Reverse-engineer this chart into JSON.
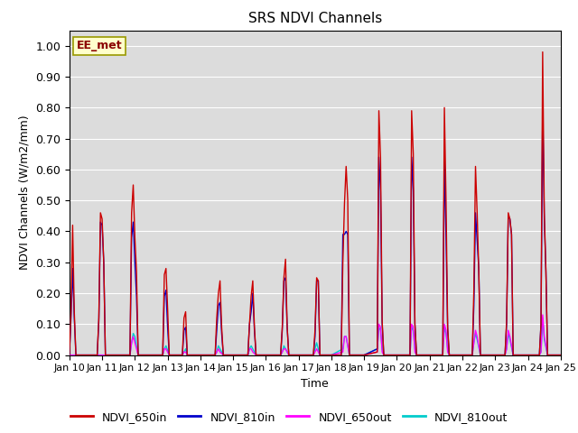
{
  "title": "SRS NDVI Channels",
  "ylabel": "NDVI Channels (W/m2/mm)",
  "xlabel": "Time",
  "annotation": "EE_met",
  "ylim": [
    0.0,
    1.05
  ],
  "xlim": [
    0,
    15
  ],
  "xtick_labels": [
    "Jan 10",
    "Jan 11",
    "Jan 12",
    "Jan 13",
    "Jan 14",
    "Jan 15",
    "Jan 16",
    "Jan 17",
    "Jan 18",
    "Jan 19",
    "Jan 20",
    "Jan 21",
    "Jan 22",
    "Jan 23",
    "Jan 24",
    "Jan 25"
  ],
  "colors": {
    "NDVI_650in": "#cc0000",
    "NDVI_810in": "#0000cc",
    "NDVI_650out": "#ff00ff",
    "NDVI_810out": "#00cccc"
  },
  "background_color": "#dcdcdc",
  "series": {
    "NDVI_650in": [
      [
        0.0,
        0.0
      ],
      [
        0.05,
        0.14
      ],
      [
        0.1,
        0.42
      ],
      [
        0.15,
        0.14
      ],
      [
        0.2,
        0.0
      ],
      [
        0.85,
        0.0
      ],
      [
        0.9,
        0.12
      ],
      [
        0.95,
        0.46
      ],
      [
        1.0,
        0.44
      ],
      [
        1.05,
        0.3
      ],
      [
        1.1,
        0.0
      ],
      [
        1.85,
        0.0
      ],
      [
        1.9,
        0.46
      ],
      [
        1.95,
        0.55
      ],
      [
        2.0,
        0.38
      ],
      [
        2.05,
        0.27
      ],
      [
        2.1,
        0.0
      ],
      [
        2.85,
        0.0
      ],
      [
        2.9,
        0.26
      ],
      [
        2.95,
        0.28
      ],
      [
        3.0,
        0.15
      ],
      [
        3.05,
        0.0
      ],
      [
        3.45,
        0.0
      ],
      [
        3.5,
        0.12
      ],
      [
        3.55,
        0.14
      ],
      [
        3.6,
        0.0
      ],
      [
        4.45,
        0.0
      ],
      [
        4.5,
        0.12
      ],
      [
        4.55,
        0.2
      ],
      [
        4.6,
        0.24
      ],
      [
        4.65,
        0.09
      ],
      [
        4.7,
        0.0
      ],
      [
        5.45,
        0.0
      ],
      [
        5.5,
        0.1
      ],
      [
        5.55,
        0.19
      ],
      [
        5.6,
        0.24
      ],
      [
        5.65,
        0.09
      ],
      [
        5.7,
        0.0
      ],
      [
        6.45,
        0.0
      ],
      [
        6.5,
        0.09
      ],
      [
        6.55,
        0.25
      ],
      [
        6.6,
        0.31
      ],
      [
        6.65,
        0.09
      ],
      [
        6.7,
        0.0
      ],
      [
        7.45,
        0.0
      ],
      [
        7.5,
        0.08
      ],
      [
        7.55,
        0.25
      ],
      [
        7.6,
        0.24
      ],
      [
        7.65,
        0.0
      ],
      [
        8.0,
        0.0
      ],
      [
        8.3,
        0.0
      ],
      [
        8.35,
        0.3
      ],
      [
        8.4,
        0.49
      ],
      [
        8.45,
        0.61
      ],
      [
        8.5,
        0.5
      ],
      [
        8.55,
        0.0
      ],
      [
        9.0,
        0.0
      ],
      [
        9.4,
        0.01
      ],
      [
        9.45,
        0.79
      ],
      [
        9.5,
        0.64
      ],
      [
        9.55,
        0.11
      ],
      [
        9.6,
        0.0
      ],
      [
        10.4,
        0.0
      ],
      [
        10.45,
        0.79
      ],
      [
        10.5,
        0.65
      ],
      [
        10.55,
        0.1
      ],
      [
        10.6,
        0.0
      ],
      [
        11.4,
        0.0
      ],
      [
        11.45,
        0.8
      ],
      [
        11.5,
        0.5
      ],
      [
        11.55,
        0.09
      ],
      [
        11.6,
        0.0
      ],
      [
        12.3,
        0.0
      ],
      [
        12.35,
        0.21
      ],
      [
        12.4,
        0.61
      ],
      [
        12.45,
        0.46
      ],
      [
        12.5,
        0.27
      ],
      [
        12.55,
        0.0
      ],
      [
        13.3,
        0.0
      ],
      [
        13.35,
        0.11
      ],
      [
        13.4,
        0.46
      ],
      [
        13.45,
        0.44
      ],
      [
        13.5,
        0.39
      ],
      [
        13.55,
        0.0
      ],
      [
        14.35,
        0.0
      ],
      [
        14.4,
        0.1
      ],
      [
        14.45,
        0.98
      ],
      [
        14.5,
        0.46
      ],
      [
        14.55,
        0.27
      ],
      [
        14.6,
        0.0
      ],
      [
        15.0,
        0.0
      ]
    ],
    "NDVI_810in": [
      [
        0.0,
        0.0
      ],
      [
        0.05,
        0.12
      ],
      [
        0.1,
        0.28
      ],
      [
        0.15,
        0.12
      ],
      [
        0.2,
        0.0
      ],
      [
        0.85,
        0.0
      ],
      [
        0.9,
        0.11
      ],
      [
        0.95,
        0.43
      ],
      [
        1.0,
        0.42
      ],
      [
        1.05,
        0.3
      ],
      [
        1.1,
        0.0
      ],
      [
        1.85,
        0.0
      ],
      [
        1.9,
        0.38
      ],
      [
        1.95,
        0.43
      ],
      [
        2.0,
        0.3
      ],
      [
        2.05,
        0.19
      ],
      [
        2.1,
        0.0
      ],
      [
        2.85,
        0.0
      ],
      [
        2.9,
        0.19
      ],
      [
        2.95,
        0.21
      ],
      [
        3.0,
        0.09
      ],
      [
        3.05,
        0.0
      ],
      [
        3.45,
        0.0
      ],
      [
        3.5,
        0.08
      ],
      [
        3.55,
        0.09
      ],
      [
        3.6,
        0.0
      ],
      [
        4.45,
        0.0
      ],
      [
        4.5,
        0.08
      ],
      [
        4.55,
        0.16
      ],
      [
        4.6,
        0.17
      ],
      [
        4.65,
        0.07
      ],
      [
        4.7,
        0.0
      ],
      [
        5.45,
        0.0
      ],
      [
        5.5,
        0.1
      ],
      [
        5.55,
        0.14
      ],
      [
        5.6,
        0.2
      ],
      [
        5.65,
        0.08
      ],
      [
        5.7,
        0.0
      ],
      [
        6.45,
        0.0
      ],
      [
        6.5,
        0.08
      ],
      [
        6.55,
        0.24
      ],
      [
        6.6,
        0.25
      ],
      [
        6.65,
        0.09
      ],
      [
        6.7,
        0.0
      ],
      [
        7.45,
        0.0
      ],
      [
        7.5,
        0.06
      ],
      [
        7.55,
        0.24
      ],
      [
        7.6,
        0.24
      ],
      [
        7.65,
        0.0
      ],
      [
        8.0,
        0.0
      ],
      [
        8.3,
        0.0
      ],
      [
        8.35,
        0.39
      ],
      [
        8.4,
        0.39
      ],
      [
        8.45,
        0.4
      ],
      [
        8.5,
        0.39
      ],
      [
        8.55,
        0.0
      ],
      [
        9.0,
        0.0
      ],
      [
        9.4,
        0.02
      ],
      [
        9.45,
        0.64
      ],
      [
        9.5,
        0.53
      ],
      [
        9.55,
        0.1
      ],
      [
        9.6,
        0.0
      ],
      [
        10.4,
        0.0
      ],
      [
        10.45,
        0.64
      ],
      [
        10.5,
        0.53
      ],
      [
        10.55,
        0.1
      ],
      [
        10.6,
        0.0
      ],
      [
        11.4,
        0.0
      ],
      [
        11.45,
        0.64
      ],
      [
        11.5,
        0.38
      ],
      [
        11.55,
        0.08
      ],
      [
        11.6,
        0.0
      ],
      [
        12.3,
        0.0
      ],
      [
        12.35,
        0.16
      ],
      [
        12.4,
        0.46
      ],
      [
        12.45,
        0.37
      ],
      [
        12.5,
        0.28
      ],
      [
        12.55,
        0.0
      ],
      [
        13.3,
        0.0
      ],
      [
        13.35,
        0.1
      ],
      [
        13.4,
        0.45
      ],
      [
        13.45,
        0.44
      ],
      [
        13.5,
        0.39
      ],
      [
        13.55,
        0.0
      ],
      [
        14.35,
        0.0
      ],
      [
        14.4,
        0.1
      ],
      [
        14.45,
        0.8
      ],
      [
        14.5,
        0.44
      ],
      [
        14.55,
        0.27
      ],
      [
        14.6,
        0.0
      ],
      [
        15.0,
        0.0
      ]
    ],
    "NDVI_650out": [
      [
        0.0,
        0.0
      ],
      [
        1.85,
        0.0
      ],
      [
        1.9,
        0.04
      ],
      [
        1.95,
        0.06
      ],
      [
        2.0,
        0.04
      ],
      [
        2.1,
        0.0
      ],
      [
        2.85,
        0.0
      ],
      [
        2.9,
        0.02
      ],
      [
        2.95,
        0.02
      ],
      [
        3.05,
        0.0
      ],
      [
        3.45,
        0.0
      ],
      [
        3.5,
        0.01
      ],
      [
        3.55,
        0.01
      ],
      [
        3.6,
        0.0
      ],
      [
        4.45,
        0.0
      ],
      [
        4.5,
        0.01
      ],
      [
        4.55,
        0.02
      ],
      [
        4.6,
        0.01
      ],
      [
        4.7,
        0.0
      ],
      [
        5.45,
        0.0
      ],
      [
        5.5,
        0.02
      ],
      [
        5.55,
        0.02
      ],
      [
        5.6,
        0.01
      ],
      [
        5.7,
        0.0
      ],
      [
        6.45,
        0.0
      ],
      [
        6.5,
        0.01
      ],
      [
        6.55,
        0.02
      ],
      [
        6.6,
        0.02
      ],
      [
        6.7,
        0.0
      ],
      [
        7.45,
        0.0
      ],
      [
        7.5,
        0.01
      ],
      [
        7.55,
        0.02
      ],
      [
        7.6,
        0.01
      ],
      [
        7.65,
        0.0
      ],
      [
        8.0,
        0.0
      ],
      [
        8.35,
        0.01
      ],
      [
        8.4,
        0.06
      ],
      [
        8.45,
        0.06
      ],
      [
        8.55,
        0.0
      ],
      [
        9.0,
        0.0
      ],
      [
        9.4,
        0.01
      ],
      [
        9.45,
        0.1
      ],
      [
        9.5,
        0.09
      ],
      [
        9.55,
        0.01
      ],
      [
        9.6,
        0.0
      ],
      [
        10.4,
        0.0
      ],
      [
        10.45,
        0.1
      ],
      [
        10.5,
        0.09
      ],
      [
        10.55,
        0.01
      ],
      [
        10.6,
        0.0
      ],
      [
        11.4,
        0.0
      ],
      [
        11.45,
        0.1
      ],
      [
        11.5,
        0.08
      ],
      [
        11.55,
        0.01
      ],
      [
        11.6,
        0.0
      ],
      [
        12.3,
        0.0
      ],
      [
        12.35,
        0.04
      ],
      [
        12.4,
        0.08
      ],
      [
        12.45,
        0.06
      ],
      [
        12.55,
        0.0
      ],
      [
        13.3,
        0.0
      ],
      [
        13.35,
        0.02
      ],
      [
        13.4,
        0.08
      ],
      [
        13.45,
        0.06
      ],
      [
        13.55,
        0.0
      ],
      [
        14.35,
        0.0
      ],
      [
        14.4,
        0.01
      ],
      [
        14.45,
        0.13
      ],
      [
        14.5,
        0.06
      ],
      [
        14.6,
        0.0
      ],
      [
        15.0,
        0.0
      ]
    ],
    "NDVI_810out": [
      [
        0.0,
        0.0
      ],
      [
        1.85,
        0.0
      ],
      [
        1.9,
        0.04
      ],
      [
        1.95,
        0.07
      ],
      [
        2.0,
        0.06
      ],
      [
        2.1,
        0.0
      ],
      [
        2.85,
        0.0
      ],
      [
        2.9,
        0.02
      ],
      [
        2.95,
        0.03
      ],
      [
        3.05,
        0.0
      ],
      [
        3.45,
        0.0
      ],
      [
        3.5,
        0.01
      ],
      [
        3.55,
        0.02
      ],
      [
        3.6,
        0.0
      ],
      [
        4.45,
        0.0
      ],
      [
        4.5,
        0.01
      ],
      [
        4.55,
        0.03
      ],
      [
        4.6,
        0.02
      ],
      [
        4.7,
        0.0
      ],
      [
        5.45,
        0.0
      ],
      [
        5.5,
        0.02
      ],
      [
        5.55,
        0.03
      ],
      [
        5.6,
        0.02
      ],
      [
        5.7,
        0.0
      ],
      [
        6.45,
        0.0
      ],
      [
        6.5,
        0.01
      ],
      [
        6.55,
        0.03
      ],
      [
        6.6,
        0.02
      ],
      [
        6.7,
        0.0
      ],
      [
        7.45,
        0.0
      ],
      [
        7.5,
        0.02
      ],
      [
        7.55,
        0.04
      ],
      [
        7.6,
        0.02
      ],
      [
        7.65,
        0.0
      ],
      [
        8.0,
        0.0
      ],
      [
        8.35,
        0.02
      ],
      [
        8.4,
        0.06
      ],
      [
        8.45,
        0.06
      ],
      [
        8.55,
        0.0
      ],
      [
        9.0,
        0.0
      ],
      [
        9.4,
        0.02
      ],
      [
        9.45,
        0.09
      ],
      [
        9.5,
        0.08
      ],
      [
        9.55,
        0.02
      ],
      [
        9.6,
        0.0
      ],
      [
        10.4,
        0.0
      ],
      [
        10.45,
        0.09
      ],
      [
        10.5,
        0.08
      ],
      [
        10.55,
        0.02
      ],
      [
        10.6,
        0.0
      ],
      [
        11.4,
        0.0
      ],
      [
        11.45,
        0.09
      ],
      [
        11.5,
        0.07
      ],
      [
        11.55,
        0.02
      ],
      [
        11.6,
        0.0
      ],
      [
        12.3,
        0.0
      ],
      [
        12.35,
        0.04
      ],
      [
        12.4,
        0.07
      ],
      [
        12.45,
        0.05
      ],
      [
        12.55,
        0.0
      ],
      [
        13.3,
        0.0
      ],
      [
        13.35,
        0.02
      ],
      [
        13.4,
        0.07
      ],
      [
        13.45,
        0.05
      ],
      [
        13.55,
        0.0
      ],
      [
        14.35,
        0.0
      ],
      [
        14.4,
        0.01
      ],
      [
        14.45,
        0.12
      ],
      [
        14.5,
        0.05
      ],
      [
        14.6,
        0.0
      ],
      [
        15.0,
        0.0
      ]
    ]
  }
}
